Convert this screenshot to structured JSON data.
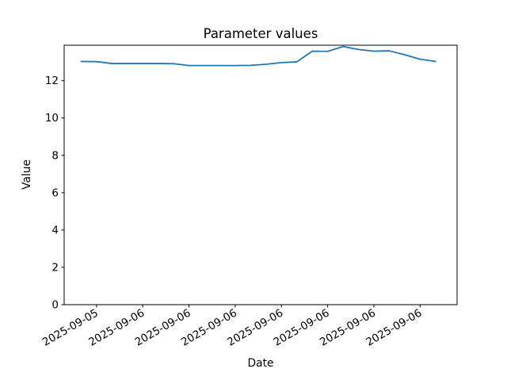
{
  "chart_data": {
    "type": "line",
    "title": "Parameter values",
    "xlabel": "Date",
    "ylabel": "Value",
    "line_color": "#1f77b4",
    "background_color": "#ffffff",
    "grid": false,
    "legend": null,
    "ylim": [
      0,
      13.9
    ],
    "xlim_hours": [
      -1.1,
      24.4
    ],
    "y_ticks": [
      0,
      2,
      4,
      6,
      8,
      10,
      12
    ],
    "x_tick_rotation_deg": 30,
    "x_ticks": [
      {
        "hour": 1,
        "label": "2025-09-05"
      },
      {
        "hour": 4,
        "label": "2025-09-06"
      },
      {
        "hour": 7,
        "label": "2025-09-06"
      },
      {
        "hour": 10,
        "label": "2025-09-06"
      },
      {
        "hour": 13,
        "label": "2025-09-06"
      },
      {
        "hour": 16,
        "label": "2025-09-06"
      },
      {
        "hour": 19,
        "label": "2025-09-06"
      },
      {
        "hour": 22,
        "label": "2025-09-06"
      }
    ],
    "series": [
      {
        "name": "parameter-values",
        "points": [
          {
            "time": "2025-09-05 20:00",
            "hour": 0,
            "value": 13.03
          },
          {
            "time": "2025-09-05 21:00",
            "hour": 1,
            "value": 13.02
          },
          {
            "time": "2025-09-05 22:00",
            "hour": 2,
            "value": 12.92
          },
          {
            "time": "2025-09-05 23:00",
            "hour": 3,
            "value": 12.92
          },
          {
            "time": "2025-09-06 00:00",
            "hour": 4,
            "value": 12.92
          },
          {
            "time": "2025-09-06 01:00",
            "hour": 5,
            "value": 12.92
          },
          {
            "time": "2025-09-06 02:00",
            "hour": 6,
            "value": 12.91
          },
          {
            "time": "2025-09-06 03:00",
            "hour": 7,
            "value": 12.81
          },
          {
            "time": "2025-09-06 04:00",
            "hour": 8,
            "value": 12.81
          },
          {
            "time": "2025-09-06 05:00",
            "hour": 9,
            "value": 12.81
          },
          {
            "time": "2025-09-06 06:00",
            "hour": 10,
            "value": 12.81
          },
          {
            "time": "2025-09-06 07:00",
            "hour": 11,
            "value": 12.82
          },
          {
            "time": "2025-09-06 08:00",
            "hour": 12,
            "value": 12.88
          },
          {
            "time": "2025-09-06 09:00",
            "hour": 13,
            "value": 12.97
          },
          {
            "time": "2025-09-06 10:00",
            "hour": 14,
            "value": 13.01
          },
          {
            "time": "2025-09-06 11:00",
            "hour": 15,
            "value": 13.58
          },
          {
            "time": "2025-09-06 12:00",
            "hour": 16,
            "value": 13.57
          },
          {
            "time": "2025-09-06 13:00",
            "hour": 17,
            "value": 13.83
          },
          {
            "time": "2025-09-06 14:00",
            "hour": 18,
            "value": 13.67
          },
          {
            "time": "2025-09-06 15:00",
            "hour": 19,
            "value": 13.58
          },
          {
            "time": "2025-09-06 16:00",
            "hour": 20,
            "value": 13.6
          },
          {
            "time": "2025-09-06 17:00",
            "hour": 21,
            "value": 13.39
          },
          {
            "time": "2025-09-06 18:00",
            "hour": 22,
            "value": 13.15
          },
          {
            "time": "2025-09-06 19:00",
            "hour": 23,
            "value": 13.03
          }
        ]
      }
    ]
  }
}
